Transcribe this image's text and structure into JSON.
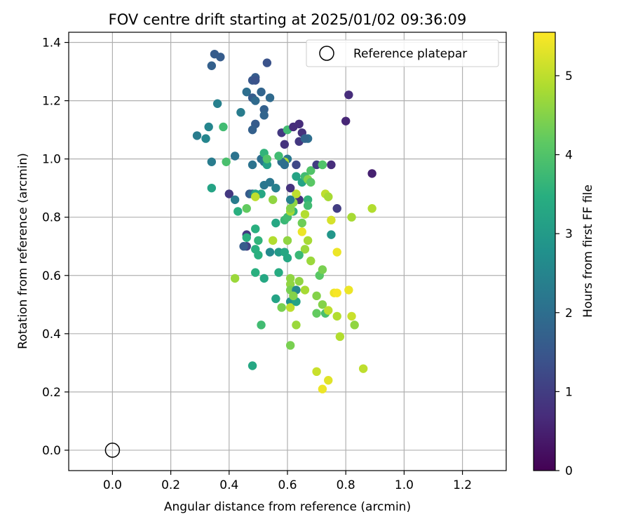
{
  "chart_data": {
    "type": "scatter",
    "title": "FOV centre drift starting at 2025/01/02 09:36:09",
    "xlabel": "Angular distance from reference (arcmin)",
    "ylabel": "Rotation from reference (arcmin)",
    "xlim": [
      -0.15,
      1.35
    ],
    "ylim": [
      -0.07,
      1.435
    ],
    "xticks": [
      0.0,
      0.2,
      0.4,
      0.6,
      0.8,
      1.0,
      1.2
    ],
    "xtick_labels": [
      "0.0",
      "0.2",
      "0.4",
      "0.6",
      "0.8",
      "1.0",
      "1.2"
    ],
    "yticks": [
      0.0,
      0.2,
      0.4,
      0.6,
      0.8,
      1.0,
      1.2,
      1.4
    ],
    "ytick_labels": [
      "0.0",
      "0.2",
      "0.4",
      "0.6",
      "0.8",
      "1.0",
      "1.2",
      "1.4"
    ],
    "grid": true,
    "legend": {
      "location": "top-right",
      "entries": [
        {
          "label": "Reference platepar",
          "marker": "open-circle"
        }
      ]
    },
    "reference_point": {
      "x": 0.0,
      "y": 0.0
    },
    "colorbar": {
      "label": "Hours from first FF file",
      "colormap": "viridis",
      "range": [
        0,
        5.55
      ],
      "ticks": [
        0,
        1,
        2,
        3,
        4,
        5
      ],
      "tick_labels": [
        "0",
        "1",
        "2",
        "3",
        "4",
        "5"
      ]
    },
    "points": [
      [
        0.35,
        1.36,
        1.6
      ],
      [
        0.34,
        1.32,
        1.7
      ],
      [
        0.37,
        1.35,
        1.6
      ],
      [
        0.36,
        1.19,
        2.4
      ],
      [
        0.33,
        1.11,
        2.5
      ],
      [
        0.29,
        1.08,
        2.3
      ],
      [
        0.32,
        1.07,
        2.5
      ],
      [
        0.34,
        0.99,
        2.3
      ],
      [
        0.38,
        1.11,
        3.8
      ],
      [
        0.34,
        0.9,
        3.2
      ],
      [
        0.39,
        0.99,
        3.9
      ],
      [
        0.42,
        1.01,
        2.1
      ],
      [
        0.44,
        1.16,
        2.3
      ],
      [
        0.46,
        1.23,
        2.0
      ],
      [
        0.48,
        1.27,
        1.5
      ],
      [
        0.49,
        1.28,
        1.6
      ],
      [
        0.49,
        1.27,
        1.4
      ],
      [
        0.48,
        1.21,
        1.6
      ],
      [
        0.49,
        1.2,
        1.9
      ],
      [
        0.51,
        1.23,
        1.8
      ],
      [
        0.52,
        1.17,
        1.7
      ],
      [
        0.52,
        1.15,
        1.8
      ],
      [
        0.53,
        1.33,
        1.4
      ],
      [
        0.54,
        1.21,
        1.9
      ],
      [
        0.49,
        1.12,
        1.6
      ],
      [
        0.48,
        1.1,
        1.7
      ],
      [
        0.4,
        0.88,
        0.9
      ],
      [
        0.42,
        0.86,
        2.3
      ],
      [
        0.43,
        0.82,
        3.5
      ],
      [
        0.46,
        0.83,
        4.2
      ],
      [
        0.47,
        0.88,
        1.6
      ],
      [
        0.48,
        0.88,
        1.9
      ],
      [
        0.48,
        0.98,
        2.1
      ],
      [
        0.51,
        1.0,
        2.0
      ],
      [
        0.52,
        0.99,
        2.2
      ],
      [
        0.52,
        1.02,
        3.6
      ],
      [
        0.53,
        0.98,
        3.1
      ],
      [
        0.53,
        1.0,
        4.0
      ],
      [
        0.52,
        0.91,
        2.2
      ],
      [
        0.54,
        0.92,
        2.2
      ],
      [
        0.51,
        0.88,
        3.3
      ],
      [
        0.49,
        0.88,
        3.2
      ],
      [
        0.49,
        0.87,
        5.0
      ],
      [
        0.56,
        0.9,
        2.4
      ],
      [
        0.55,
        0.86,
        4.6
      ],
      [
        0.55,
        0.72,
        4.9
      ],
      [
        0.54,
        0.68,
        2.6
      ],
      [
        0.56,
        0.78,
        3.3
      ],
      [
        0.57,
        0.68,
        3.0
      ],
      [
        0.59,
        0.68,
        3.3
      ],
      [
        0.6,
        0.66,
        3.3
      ],
      [
        0.57,
        0.61,
        3.4
      ],
      [
        0.59,
        0.79,
        3.7
      ],
      [
        0.6,
        0.8,
        3.8
      ],
      [
        0.6,
        0.72,
        4.6
      ],
      [
        0.49,
        0.76,
        3.5
      ],
      [
        0.49,
        0.69,
        3.5
      ],
      [
        0.46,
        0.74,
        0.9
      ],
      [
        0.46,
        0.7,
        1.1
      ],
      [
        0.45,
        0.7,
        1.6
      ],
      [
        0.46,
        0.73,
        3.5
      ],
      [
        0.5,
        0.67,
        3.5
      ],
      [
        0.5,
        0.72,
        3.6
      ],
      [
        0.49,
        0.61,
        3.5
      ],
      [
        0.52,
        0.59,
        3.3
      ],
      [
        0.42,
        0.59,
        4.7
      ],
      [
        0.51,
        0.43,
        3.8
      ],
      [
        0.48,
        0.29,
        3.3
      ],
      [
        0.56,
        0.52,
        3.2
      ],
      [
        0.58,
        0.49,
        4.4
      ],
      [
        0.61,
        0.51,
        2.8
      ],
      [
        0.61,
        0.59,
        4.6
      ],
      [
        0.61,
        0.57,
        4.6
      ],
      [
        0.61,
        0.55,
        4.4
      ],
      [
        0.61,
        0.49,
        5.0
      ],
      [
        0.63,
        0.51,
        3.2
      ],
      [
        0.63,
        0.55,
        2.6
      ],
      [
        0.62,
        0.53,
        4.5
      ],
      [
        0.64,
        0.58,
        4.6
      ],
      [
        0.61,
        0.36,
        4.4
      ],
      [
        0.63,
        0.43,
        4.7
      ],
      [
        0.66,
        0.55,
        4.8
      ],
      [
        0.66,
        0.69,
        4.7
      ],
      [
        0.64,
        0.67,
        3.7
      ],
      [
        0.67,
        0.72,
        4.8
      ],
      [
        0.65,
        0.75,
        5.4
      ],
      [
        0.66,
        0.81,
        4.9
      ],
      [
        0.68,
        0.65,
        4.7
      ],
      [
        0.65,
        0.78,
        4.3
      ],
      [
        0.64,
        0.86,
        0.8
      ],
      [
        0.63,
        0.88,
        5.0
      ],
      [
        0.62,
        0.85,
        4.6
      ],
      [
        0.62,
        0.82,
        3.6
      ],
      [
        0.61,
        0.82,
        4.8
      ],
      [
        0.61,
        0.9,
        0.8
      ],
      [
        0.61,
        0.86,
        2.4
      ],
      [
        0.61,
        0.83,
        4.5
      ],
      [
        0.63,
        0.94,
        3.2
      ],
      [
        0.65,
        0.92,
        3.2
      ],
      [
        0.66,
        0.94,
        3.8
      ],
      [
        0.67,
        0.93,
        4.5
      ],
      [
        0.67,
        0.86,
        3.6
      ],
      [
        0.67,
        0.84,
        3.8
      ],
      [
        0.68,
        0.96,
        4.0
      ],
      [
        0.68,
        0.92,
        4.1
      ],
      [
        0.63,
        0.98,
        1.2
      ],
      [
        0.7,
        0.98,
        1.0
      ],
      [
        0.72,
        0.98,
        4.5
      ],
      [
        0.72,
        0.98,
        4.0
      ],
      [
        0.75,
        0.98,
        0.7
      ],
      [
        0.6,
        1.0,
        2.2
      ],
      [
        0.59,
        0.99,
        4.9
      ],
      [
        0.59,
        0.98,
        2.0
      ],
      [
        0.58,
        0.99,
        2.0
      ],
      [
        0.57,
        1.01,
        3.8
      ],
      [
        0.59,
        1.05,
        0.8
      ],
      [
        0.58,
        1.09,
        0.9
      ],
      [
        0.6,
        1.1,
        3.8
      ],
      [
        0.62,
        1.11,
        0.7
      ],
      [
        0.64,
        1.12,
        0.7
      ],
      [
        0.65,
        1.09,
        0.8
      ],
      [
        0.64,
        1.06,
        0.9
      ],
      [
        0.67,
        1.07,
        2.0
      ],
      [
        0.66,
        1.07,
        1.8
      ],
      [
        0.81,
        1.22,
        0.7
      ],
      [
        0.8,
        1.13,
        0.6
      ],
      [
        0.89,
        0.95,
        0.5
      ],
      [
        0.77,
        0.83,
        1.0
      ],
      [
        0.73,
        0.88,
        5.0
      ],
      [
        0.74,
        0.87,
        4.9
      ],
      [
        0.74,
        0.87,
        4.8
      ],
      [
        0.75,
        0.79,
        5.2
      ],
      [
        0.75,
        0.74,
        2.9
      ],
      [
        0.82,
        0.8,
        4.8
      ],
      [
        0.89,
        0.83,
        4.9
      ],
      [
        0.77,
        0.68,
        5.4
      ],
      [
        0.71,
        0.6,
        4.1
      ],
      [
        0.72,
        0.62,
        4.4
      ],
      [
        0.7,
        0.53,
        4.5
      ],
      [
        0.72,
        0.5,
        4.5
      ],
      [
        0.7,
        0.47,
        4.2
      ],
      [
        0.73,
        0.47,
        3.9
      ],
      [
        0.74,
        0.48,
        5.0
      ],
      [
        0.76,
        0.54,
        5.4
      ],
      [
        0.77,
        0.54,
        5.5
      ],
      [
        0.77,
        0.46,
        4.9
      ],
      [
        0.81,
        0.55,
        5.4
      ],
      [
        0.82,
        0.46,
        5.1
      ],
      [
        0.83,
        0.43,
        4.6
      ],
      [
        0.78,
        0.39,
        4.9
      ],
      [
        0.7,
        0.27,
        5.1
      ],
      [
        0.74,
        0.24,
        5.3
      ],
      [
        0.72,
        0.21,
        5.4
      ],
      [
        0.86,
        0.28,
        5.0
      ]
    ]
  }
}
